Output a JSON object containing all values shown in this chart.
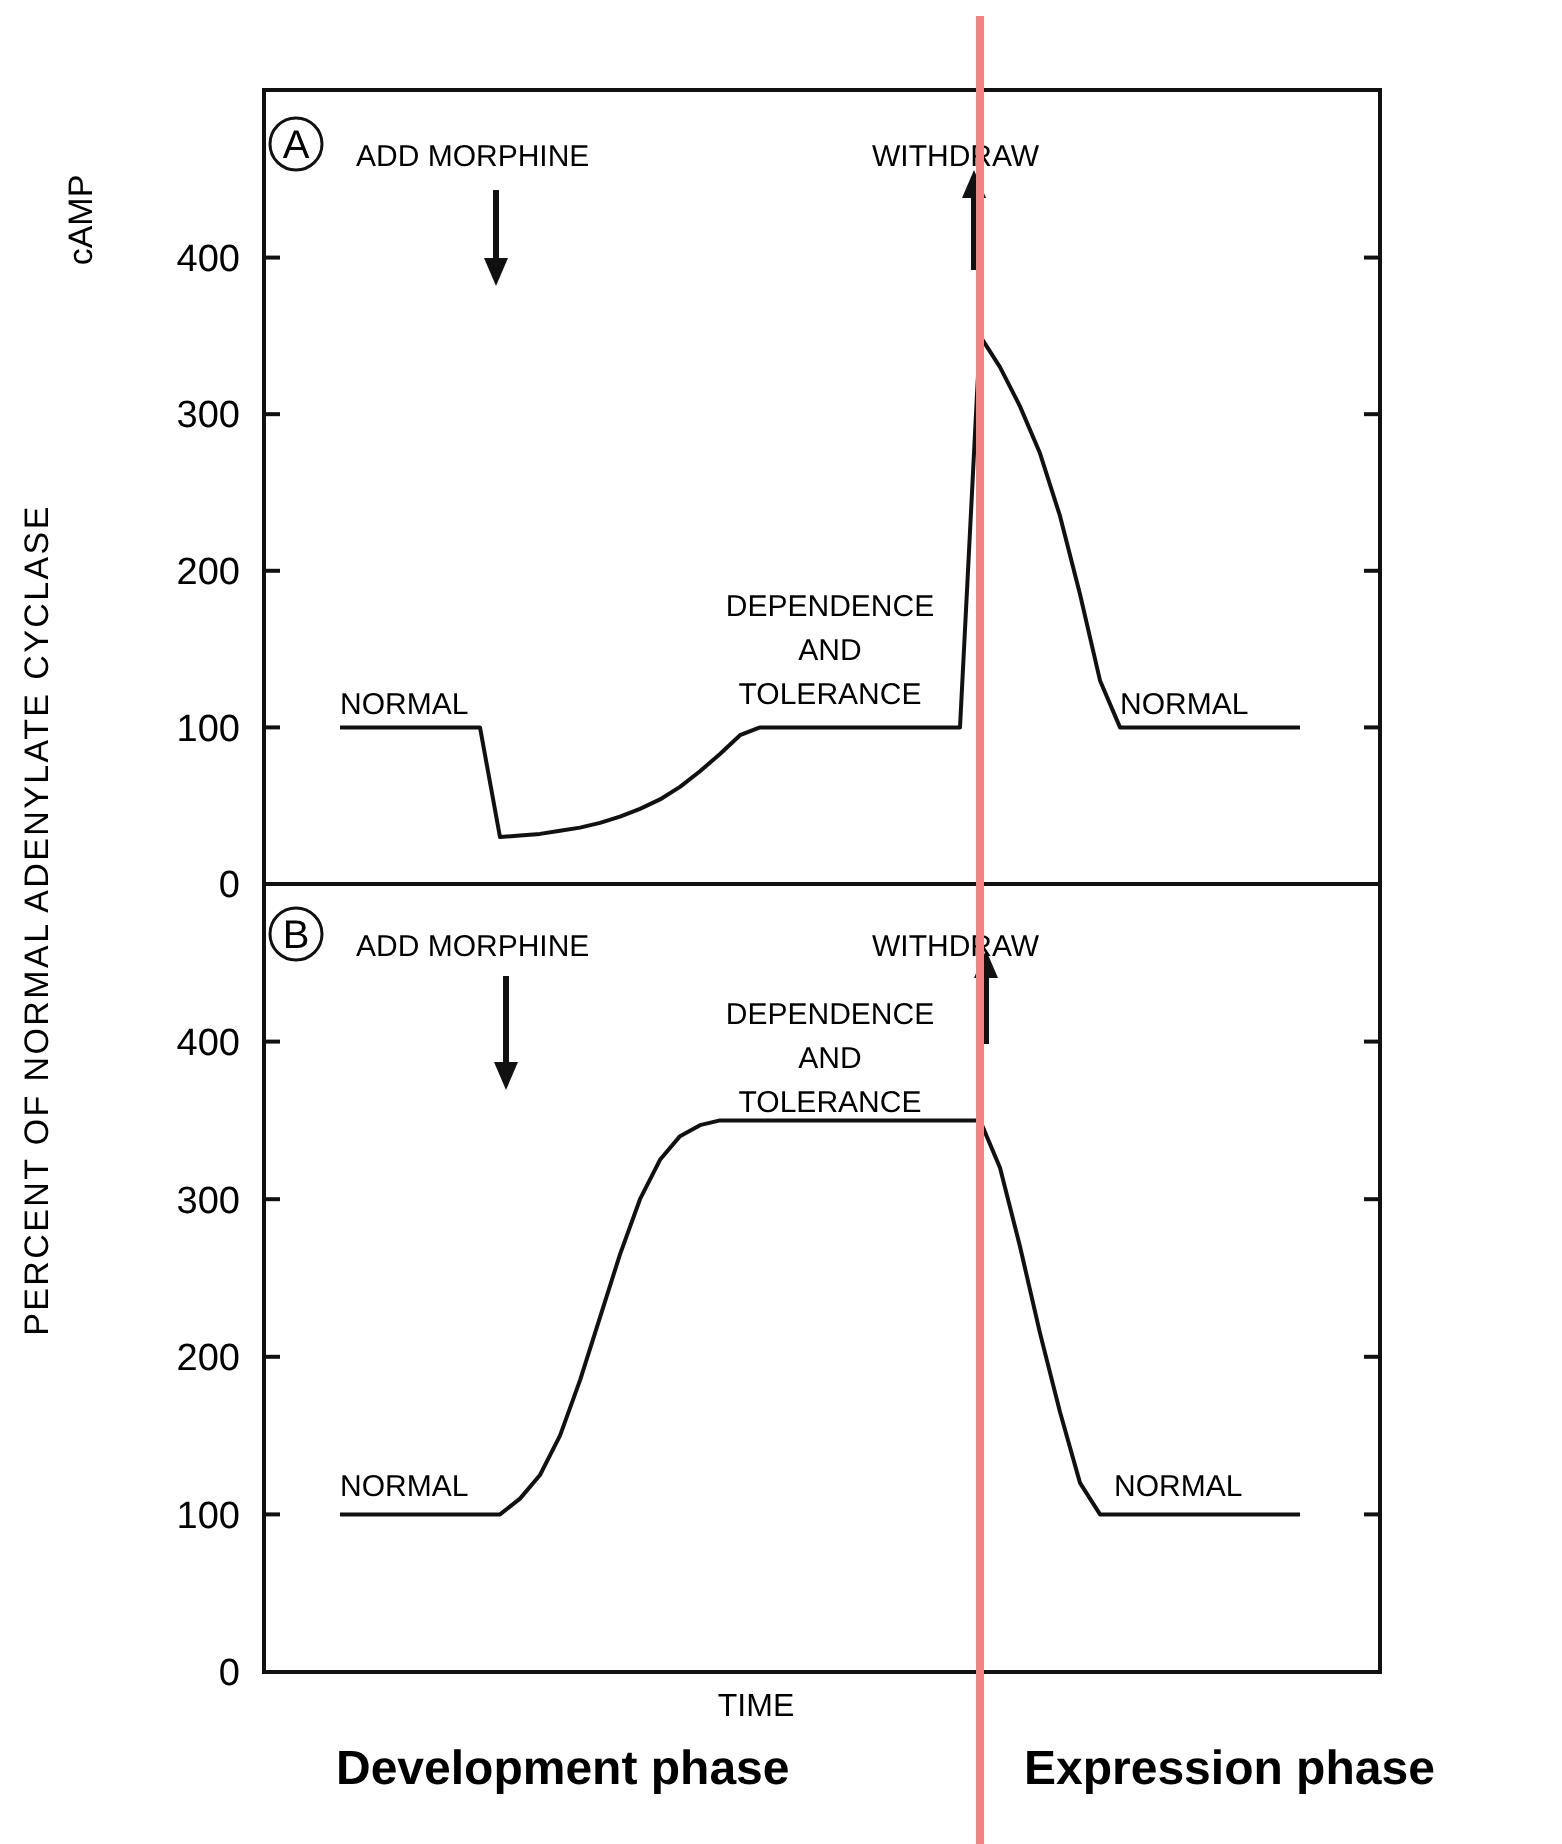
{
  "chart_data": [
    {
      "type": "line",
      "title": "A",
      "ylabel": "cAMP",
      "ylim": [
        0,
        507
      ],
      "yticks": [
        0,
        100,
        200,
        300,
        400
      ],
      "grid": false,
      "tick_labels": "y",
      "line_style": "solid",
      "categories": [
        null,
        null,
        null,
        null,
        null,
        null,
        null,
        null,
        null,
        null,
        null,
        null,
        null,
        null,
        null,
        null,
        null,
        null,
        null,
        null,
        null,
        null,
        null,
        null,
        null,
        null,
        null,
        null,
        null,
        null,
        null,
        null,
        null,
        null,
        null,
        null,
        null,
        null,
        null,
        null,
        null,
        null,
        null,
        null,
        null,
        null,
        null,
        null,
        null
      ],
      "series": [
        {
          "color": "#111111",
          "values": [
            100,
            100,
            100,
            100,
            100,
            100,
            100,
            100,
            30,
            31,
            32,
            34,
            36,
            39,
            43,
            48,
            54,
            62,
            72,
            83,
            95,
            100,
            100,
            100,
            100,
            100,
            100,
            100,
            100,
            100,
            100,
            100,
            350,
            330,
            305,
            275,
            235,
            185,
            130,
            100,
            100,
            100,
            100,
            100,
            100,
            100,
            100,
            100,
            100
          ]
        }
      ],
      "annotations": [
        "ADD MORPHINE",
        "WITHDRAW",
        "DEPENDENCE AND TOLERANCE",
        "NORMAL",
        "NORMAL"
      ]
    },
    {
      "type": "line",
      "title": "B",
      "ylabel": "PERCENT OF NORMAL ADENYLATE CYCLASE",
      "xlabel": "TIME",
      "ylim": [
        0,
        500
      ],
      "yticks": [
        0,
        100,
        200,
        300,
        400
      ],
      "grid": false,
      "tick_labels": "y",
      "line_style": "solid",
      "categories": [
        null,
        null,
        null,
        null,
        null,
        null,
        null,
        null,
        null,
        null,
        null,
        null,
        null,
        null,
        null,
        null,
        null,
        null,
        null,
        null,
        null,
        null,
        null,
        null,
        null,
        null,
        null,
        null,
        null,
        null,
        null,
        null,
        null,
        null,
        null,
        null,
        null,
        null,
        null,
        null,
        null,
        null,
        null,
        null,
        null,
        null,
        null,
        null,
        null
      ],
      "series": [
        {
          "color": "#111111",
          "values": [
            100,
            100,
            100,
            100,
            100,
            100,
            100,
            100,
            100,
            110,
            125,
            150,
            185,
            225,
            265,
            300,
            325,
            340,
            347,
            350,
            350,
            350,
            350,
            350,
            350,
            350,
            350,
            350,
            350,
            350,
            350,
            350,
            350,
            320,
            270,
            215,
            165,
            120,
            100,
            100,
            100,
            100,
            100,
            100,
            100,
            100,
            100,
            100,
            100
          ]
        }
      ],
      "annotations": [
        "ADD MORPHINE",
        "WITHDRAW",
        "DEPENDENCE AND TOLERANCE",
        "NORMAL",
        "NORMAL",
        "Development phase",
        "Expression phase"
      ]
    }
  ]
}
